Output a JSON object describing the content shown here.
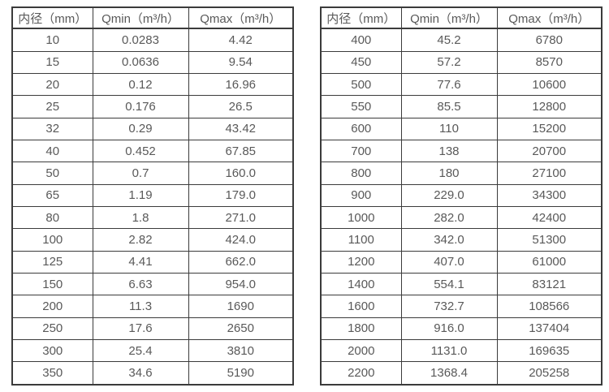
{
  "page": {
    "background": "#ffffff"
  },
  "colors": {
    "border": "#3b3b3b",
    "text": "#595959"
  },
  "headers": {
    "diameter": "内径（mm）",
    "qmin": "Qmin（m³/h）",
    "qmax": "Qmax（m³/h）"
  },
  "left_table": {
    "rows": [
      [
        "10",
        "0.0283",
        "4.42"
      ],
      [
        "15",
        "0.0636",
        "9.54"
      ],
      [
        "20",
        "0.12",
        "16.96"
      ],
      [
        "25",
        "0.176",
        "26.5"
      ],
      [
        "32",
        "0.29",
        "43.42"
      ],
      [
        "40",
        "0.452",
        "67.85"
      ],
      [
        "50",
        "0.7",
        "160.0"
      ],
      [
        "65",
        "1.19",
        "179.0"
      ],
      [
        "80",
        "1.8",
        "271.0"
      ],
      [
        "100",
        "2.82",
        "424.0"
      ],
      [
        "125",
        "4.41",
        "662.0"
      ],
      [
        "150",
        "6.63",
        "954.0"
      ],
      [
        "200",
        "11.3",
        "1690"
      ],
      [
        "250",
        "17.6",
        "2650"
      ],
      [
        "300",
        "25.4",
        "3810"
      ],
      [
        "350",
        "34.6",
        "5190"
      ]
    ]
  },
  "right_table": {
    "rows": [
      [
        "400",
        "45.2",
        "6780"
      ],
      [
        "450",
        "57.2",
        "8570"
      ],
      [
        "500",
        "77.6",
        "10600"
      ],
      [
        "550",
        "85.5",
        "12800"
      ],
      [
        "600",
        "110",
        "15200"
      ],
      [
        "700",
        "138",
        "20700"
      ],
      [
        "800",
        "180",
        "27100"
      ],
      [
        "900",
        "229.0",
        "34300"
      ],
      [
        "1000",
        "282.0",
        "42400"
      ],
      [
        "1100",
        "342.0",
        "51300"
      ],
      [
        "1200",
        "407.0",
        "61000"
      ],
      [
        "1400",
        "554.1",
        "83121"
      ],
      [
        "1600",
        "732.7",
        "108566"
      ],
      [
        "1800",
        "916.0",
        "137404"
      ],
      [
        "2000",
        "1131.0",
        "169635"
      ],
      [
        "2200",
        "1368.4",
        "205258"
      ]
    ]
  }
}
